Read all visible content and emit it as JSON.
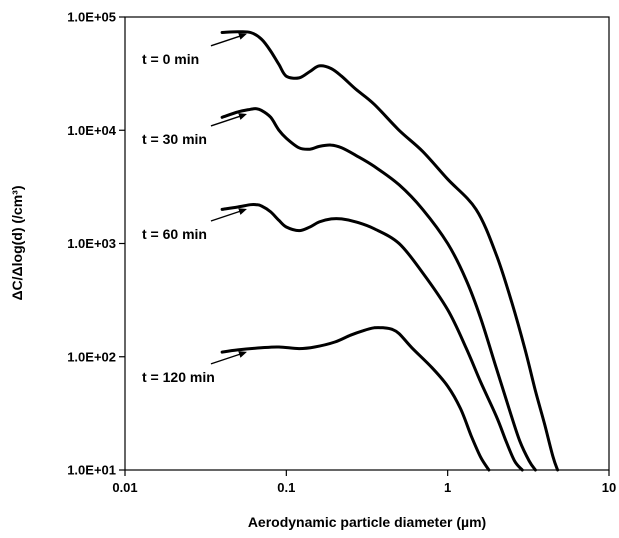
{
  "chart_data": {
    "type": "line",
    "xlabel": "Aerodynamic particle diameter (µm)",
    "ylabel": "ΔC/Δlog(d) (/cm³)",
    "x_scale": "log",
    "y_scale": "log",
    "xlim": [
      0.01,
      10
    ],
    "ylim": [
      10,
      100000
    ],
    "x_ticks": [
      {
        "value": 0.01,
        "label": "0.01"
      },
      {
        "value": 0.1,
        "label": "0.1"
      },
      {
        "value": 1,
        "label": "1"
      },
      {
        "value": 10,
        "label": "10"
      }
    ],
    "y_ticks": [
      {
        "value": 10,
        "label": "1.0E+01"
      },
      {
        "value": 100,
        "label": "1.0E+02"
      },
      {
        "value": 1000,
        "label": "1.0E+03"
      },
      {
        "value": 10000,
        "label": "1.0E+04"
      },
      {
        "value": 100000,
        "label": "1.0E+05"
      }
    ],
    "grid": false,
    "legend": "none",
    "line_color": "#000000",
    "series": [
      {
        "label": "t = 0 min",
        "x": [
          0.04,
          0.05,
          0.06,
          0.07,
          0.08,
          0.09,
          0.1,
          0.12,
          0.14,
          0.16,
          0.19,
          0.22,
          0.27,
          0.35,
          0.5,
          0.7,
          1.0,
          1.5,
          2.0,
          2.5,
          3.0,
          3.5,
          4.0,
          4.5,
          4.8
        ],
        "y": [
          73000,
          74000,
          73000,
          64000,
          50000,
          38000,
          30000,
          29000,
          33000,
          37000,
          35000,
          30000,
          23000,
          17000,
          10000,
          6500,
          3700,
          2000,
          800,
          300,
          120,
          50,
          25,
          13,
          10
        ]
      },
      {
        "label": "t = 30 min",
        "x": [
          0.04,
          0.05,
          0.06,
          0.065,
          0.07,
          0.08,
          0.09,
          0.1,
          0.12,
          0.14,
          0.16,
          0.19,
          0.22,
          0.27,
          0.35,
          0.5,
          0.7,
          1.0,
          1.3,
          1.6,
          2.0,
          2.4,
          2.8,
          3.2,
          3.5
        ],
        "y": [
          13000,
          14500,
          15300,
          15500,
          15000,
          13000,
          10000,
          8500,
          7000,
          6800,
          7200,
          7400,
          7000,
          6000,
          4800,
          3300,
          2000,
          1000,
          480,
          220,
          80,
          35,
          18,
          12,
          10
        ]
      },
      {
        "label": "t = 60 min",
        "x": [
          0.04,
          0.05,
          0.06,
          0.065,
          0.07,
          0.08,
          0.09,
          0.1,
          0.12,
          0.14,
          0.16,
          0.19,
          0.22,
          0.27,
          0.35,
          0.5,
          0.7,
          1.0,
          1.3,
          1.6,
          2.0,
          2.3,
          2.6,
          2.9
        ],
        "y": [
          2000,
          2100,
          2200,
          2200,
          2150,
          1900,
          1600,
          1400,
          1300,
          1400,
          1550,
          1650,
          1650,
          1550,
          1350,
          1000,
          550,
          260,
          120,
          60,
          30,
          18,
          12,
          10
        ]
      },
      {
        "label": "t = 120 min",
        "x": [
          0.04,
          0.05,
          0.07,
          0.09,
          0.12,
          0.15,
          0.2,
          0.25,
          0.3,
          0.35,
          0.4,
          0.45,
          0.5,
          0.6,
          0.8,
          1.0,
          1.2,
          1.4,
          1.6,
          1.8
        ],
        "y": [
          110,
          115,
          120,
          122,
          118,
          122,
          135,
          155,
          170,
          180,
          180,
          175,
          160,
          120,
          80,
          55,
          35,
          20,
          13,
          10
        ]
      }
    ]
  }
}
